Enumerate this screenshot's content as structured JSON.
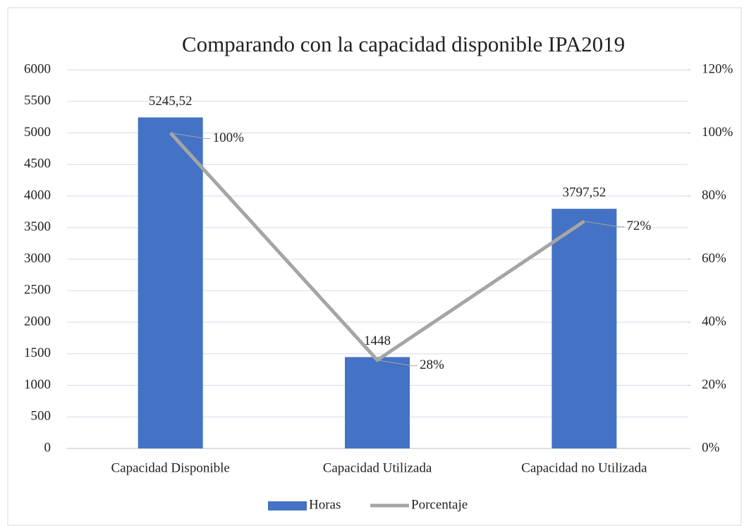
{
  "chart_data": {
    "type": "bar",
    "title": "Comparando con la capacidad disponible IPA2019",
    "categories": [
      "Capacidad Disponible",
      "Capacidad Utilizada",
      "Capacidad no Utilizada"
    ],
    "series": [
      {
        "name": "Horas",
        "type": "bar",
        "color": "#4472c4",
        "axis": "y",
        "values": [
          5245.52,
          1448,
          3797.52
        ],
        "value_labels": [
          "5245,52",
          "1448",
          "3797,52"
        ]
      },
      {
        "name": "Porcentaje",
        "type": "line",
        "color": "#a5a5a5",
        "axis": "y2",
        "values": [
          100,
          28,
          72
        ],
        "value_labels": [
          "100%",
          "28%",
          "72%"
        ]
      }
    ],
    "ylim": [
      0,
      6000
    ],
    "yticks": [
      0,
      500,
      1000,
      1500,
      2000,
      2500,
      3000,
      3500,
      4000,
      4500,
      5000,
      5500,
      6000
    ],
    "y2lim": [
      0,
      120
    ],
    "y2ticks": [
      {
        "value": 0,
        "label": "0%"
      },
      {
        "value": 20,
        "label": "20%"
      },
      {
        "value": 40,
        "label": "40%"
      },
      {
        "value": 60,
        "label": "60%"
      },
      {
        "value": 80,
        "label": "80%"
      },
      {
        "value": 100,
        "label": "100%"
      },
      {
        "value": 120,
        "label": "120%"
      }
    ],
    "grid": true,
    "legend": "bottom"
  }
}
